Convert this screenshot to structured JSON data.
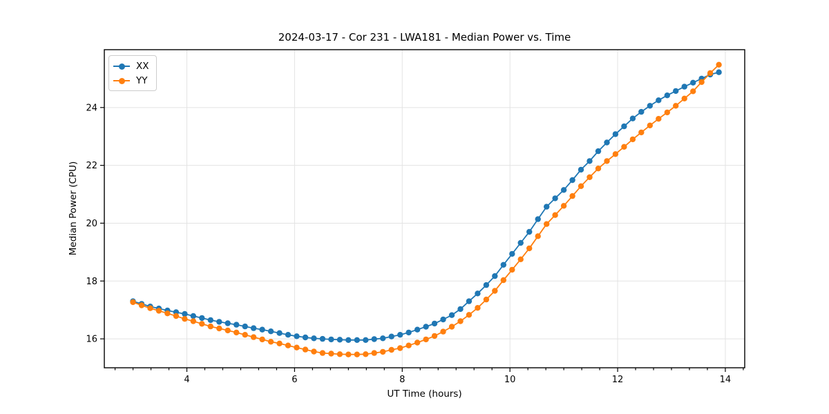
{
  "chart_data": {
    "type": "line",
    "title": "2024-03-17 - Cor 231 - LWA181 - Median Power vs. Time",
    "xlabel": "UT Time (hours)",
    "ylabel": "Median Power (CPU)",
    "x_ticks": [
      4,
      6,
      8,
      10,
      12,
      14
    ],
    "y_ticks": [
      16,
      18,
      20,
      22,
      24
    ],
    "xlim": [
      2.467,
      14.36
    ],
    "ylim": [
      15.0,
      26.0
    ],
    "grid": true,
    "grid_color": "#e3e3e3",
    "legend_position": "upper-left",
    "x": [
      3.0,
      3.16,
      3.32,
      3.48,
      3.64,
      3.8,
      3.96,
      4.12,
      4.28,
      4.44,
      4.6,
      4.76,
      4.92,
      5.08,
      5.24,
      5.4,
      5.56,
      5.72,
      5.88,
      6.04,
      6.2,
      6.36,
      6.52,
      6.68,
      6.84,
      7.0,
      7.16,
      7.32,
      7.48,
      7.64,
      7.8,
      7.96,
      8.12,
      8.28,
      8.44,
      8.6,
      8.76,
      8.92,
      9.08,
      9.24,
      9.4,
      9.56,
      9.72,
      9.88,
      10.04,
      10.2,
      10.36,
      10.52,
      10.68,
      10.84,
      11.0,
      11.16,
      11.32,
      11.48,
      11.64,
      11.8,
      11.96,
      12.12,
      12.28,
      12.44,
      12.6,
      12.76,
      12.92,
      13.08,
      13.24,
      13.4,
      13.56,
      13.72,
      13.88
    ],
    "series": [
      {
        "name": "XX",
        "color": "#1f77b4",
        "values": [
          17.3,
          17.21,
          17.12,
          17.05,
          16.98,
          16.92,
          16.86,
          16.79,
          16.72,
          16.65,
          16.59,
          16.54,
          16.49,
          16.43,
          16.37,
          16.32,
          16.26,
          16.2,
          16.14,
          16.09,
          16.05,
          16.02,
          16.0,
          15.98,
          15.97,
          15.96,
          15.96,
          15.96,
          15.99,
          16.02,
          16.08,
          16.14,
          16.22,
          16.32,
          16.42,
          16.53,
          16.67,
          16.82,
          17.03,
          17.3,
          17.57,
          17.86,
          18.17,
          18.56,
          18.94,
          19.32,
          19.7,
          20.14,
          20.57,
          20.86,
          21.15,
          21.49,
          21.85,
          22.15,
          22.49,
          22.79,
          23.08,
          23.35,
          23.62,
          23.85,
          24.06,
          24.25,
          24.42,
          24.57,
          24.72,
          24.86,
          25.0,
          25.14,
          25.22
        ]
      },
      {
        "name": "YY",
        "color": "#ff7f0e",
        "values": [
          17.27,
          17.16,
          17.06,
          16.97,
          16.88,
          16.79,
          16.69,
          16.61,
          16.52,
          16.43,
          16.36,
          16.29,
          16.22,
          16.14,
          16.06,
          15.98,
          15.9,
          15.84,
          15.77,
          15.7,
          15.63,
          15.56,
          15.51,
          15.49,
          15.47,
          15.46,
          15.46,
          15.47,
          15.51,
          15.55,
          15.62,
          15.68,
          15.77,
          15.87,
          15.98,
          16.1,
          16.25,
          16.42,
          16.61,
          16.83,
          17.07,
          17.36,
          17.66,
          18.03,
          18.39,
          18.75,
          19.13,
          19.55,
          19.97,
          20.28,
          20.6,
          20.94,
          21.28,
          21.59,
          21.89,
          22.15,
          22.39,
          22.64,
          22.9,
          23.14,
          23.38,
          23.61,
          23.83,
          24.06,
          24.31,
          24.56,
          24.88,
          25.19,
          25.48
        ]
      }
    ]
  }
}
